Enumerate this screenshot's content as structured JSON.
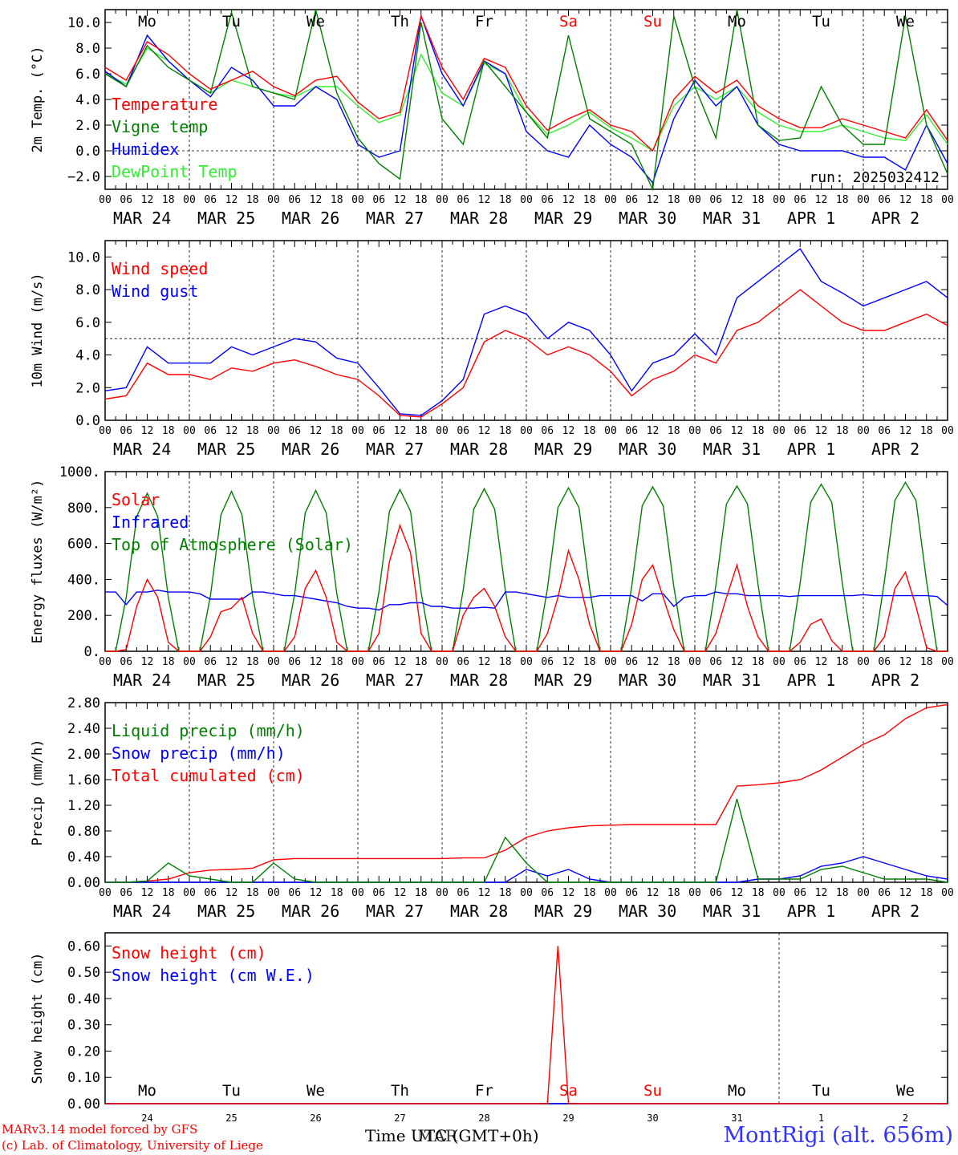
{
  "colors": {
    "red": "#ff0000",
    "green": "#008000",
    "blue": "#0000ff",
    "lightgreen": "#33ee33",
    "black": "#000000"
  },
  "day_letters": [
    "Mo",
    "Tu",
    "We",
    "Th",
    "Fr",
    "Sa",
    "Su",
    "Mo",
    "Tu",
    "We"
  ],
  "day_letter_colors": [
    "#000000",
    "#000000",
    "#000000",
    "#000000",
    "#000000",
    "#ff0000",
    "#ff0000",
    "#000000",
    "#000000",
    "#000000"
  ],
  "date_labels": [
    "MAR 24",
    "MAR 25",
    "MAR 26",
    "MAR 27",
    "MAR 28",
    "MAR 29",
    "MAR 30",
    "MAR 31",
    "APR  1",
    "APR  2"
  ],
  "hour_ticks": [
    "00",
    "06",
    "12",
    "18"
  ],
  "snow_day_numbers": [
    "24",
    "25",
    "26",
    "27",
    "28",
    "29",
    "30",
    "31",
    "1",
    "2"
  ],
  "footer": {
    "model_line": "MARv3.14 model forced by GFS",
    "credit_line": "(c) Lab. of Climatology, University of Liege",
    "time_label": "Time UTC (GMT+0h)",
    "time_overlap": "MAR",
    "station": "MontRigi (alt. 656m)"
  },
  "chart_data": [
    {
      "type": "line",
      "ylabel": "2m Temp. (°C)",
      "ylim": [
        -3,
        11
      ],
      "yticks": [
        10,
        8,
        6,
        4,
        2,
        0,
        -2
      ],
      "ytick_labels": [
        "10.0",
        "8.0",
        "6.0",
        "4.0",
        "2.0",
        "0.0",
        "−2.0"
      ],
      "reference_line": 0,
      "annotation": "run: 2025032412",
      "x_hours": [
        0,
        6,
        12,
        18,
        24,
        30,
        36,
        42,
        48,
        54,
        60,
        66,
        72,
        78,
        84,
        90,
        96,
        102,
        108,
        114,
        120,
        126,
        132,
        138,
        144,
        150,
        156,
        162,
        168,
        174,
        180,
        186,
        192,
        198,
        204,
        210,
        216,
        222,
        228,
        234,
        240
      ],
      "series": [
        {
          "name": "Temperature",
          "color": "#ff0000",
          "values": [
            6.5,
            5.5,
            8.5,
            7.5,
            6.0,
            4.8,
            5.5,
            6.2,
            5.0,
            4.3,
            5.5,
            5.8,
            3.8,
            2.5,
            3.0,
            10.5,
            6.5,
            4.0,
            7.2,
            6.5,
            3.5,
            1.6,
            2.5,
            3.2,
            2.0,
            1.5,
            0.0,
            4.0,
            5.8,
            4.5,
            5.5,
            3.5,
            2.5,
            1.8,
            1.8,
            2.5,
            2.0,
            1.5,
            1.0,
            3.2,
            0.8
          ]
        },
        {
          "name": "Vigne temp",
          "color": "#008000",
          "values": [
            6.0,
            5.0,
            8.2,
            6.5,
            5.5,
            4.5,
            10.8,
            5.0,
            4.5,
            4.0,
            11.0,
            4.5,
            1.0,
            -1.0,
            -2.2,
            10.0,
            2.5,
            0.5,
            7.0,
            5.0,
            3.0,
            1.0,
            9.0,
            2.5,
            1.5,
            0.5,
            -3.0,
            10.5,
            5.0,
            1.0,
            11.0,
            2.0,
            0.8,
            1.0,
            5.0,
            2.0,
            0.5,
            0.5,
            10.5,
            2.0,
            -1.8
          ]
        },
        {
          "name": "Humidex",
          "color": "#0000ff",
          "values": [
            6.2,
            5.0,
            9.0,
            7.0,
            5.5,
            4.2,
            6.5,
            5.5,
            3.5,
            3.5,
            5.0,
            4.0,
            0.5,
            -0.5,
            0.0,
            10.5,
            6.0,
            3.5,
            7.0,
            6.0,
            1.5,
            0.0,
            -0.5,
            2.0,
            0.5,
            -0.5,
            -2.5,
            2.5,
            5.5,
            3.5,
            5.0,
            2.0,
            0.5,
            0.0,
            0.0,
            0.0,
            -0.5,
            -0.5,
            -1.5,
            2.0,
            -1.0
          ]
        },
        {
          "name": "DewPoint Temp",
          "color": "#33ee33",
          "values": [
            6.0,
            5.2,
            8.0,
            7.0,
            5.5,
            4.5,
            5.5,
            5.0,
            4.5,
            4.2,
            5.0,
            5.0,
            3.5,
            2.2,
            2.8,
            7.5,
            4.5,
            3.5,
            6.8,
            6.0,
            3.0,
            1.3,
            2.0,
            3.0,
            1.8,
            1.0,
            0.0,
            3.5,
            5.0,
            4.0,
            5.0,
            3.0,
            2.0,
            1.5,
            1.5,
            2.0,
            1.5,
            1.0,
            0.8,
            2.8,
            0.5
          ]
        }
      ]
    },
    {
      "type": "line",
      "ylabel": "10m Wind (m/s)",
      "ylim": [
        0,
        11
      ],
      "yticks": [
        10,
        8,
        6,
        4,
        2,
        0
      ],
      "ytick_labels": [
        "10.0",
        "8.0",
        "6.0",
        "4.0",
        "2.0",
        "0.0"
      ],
      "reference_line": 5,
      "x_hours": [
        0,
        6,
        12,
        18,
        24,
        30,
        36,
        42,
        48,
        54,
        60,
        66,
        72,
        78,
        84,
        90,
        96,
        102,
        108,
        114,
        120,
        126,
        132,
        138,
        144,
        150,
        156,
        162,
        168,
        174,
        180,
        186,
        192,
        198,
        204,
        210,
        216,
        222,
        228,
        234,
        240
      ],
      "series": [
        {
          "name": "Wind speed",
          "color": "#ff0000",
          "values": [
            1.3,
            1.5,
            3.5,
            2.8,
            2.8,
            2.5,
            3.2,
            3.0,
            3.5,
            3.7,
            3.3,
            2.8,
            2.5,
            1.5,
            0.3,
            0.2,
            1.0,
            2.0,
            4.8,
            5.5,
            5.0,
            4.0,
            4.5,
            4.0,
            3.0,
            1.5,
            2.5,
            3.0,
            4.0,
            3.5,
            5.5,
            6.0,
            7.0,
            8.0,
            7.0,
            6.0,
            5.5,
            5.5,
            6.0,
            6.5,
            5.8
          ]
        },
        {
          "name": "Wind gust",
          "color": "#0000ff",
          "values": [
            1.8,
            2.0,
            4.5,
            3.5,
            3.5,
            3.5,
            4.5,
            4.0,
            4.5,
            5.0,
            4.8,
            3.8,
            3.5,
            2.0,
            0.4,
            0.3,
            1.2,
            2.5,
            6.5,
            7.0,
            6.5,
            5.0,
            6.0,
            5.5,
            4.0,
            1.8,
            3.5,
            4.0,
            5.3,
            4.0,
            7.5,
            8.5,
            9.5,
            10.5,
            8.5,
            7.8,
            7.0,
            7.5,
            8.0,
            8.5,
            7.5
          ]
        }
      ]
    },
    {
      "type": "line",
      "ylabel": "Energy fluxes (W/m²)",
      "ylim": [
        0,
        1000
      ],
      "yticks": [
        1000,
        800,
        600,
        400,
        200,
        0
      ],
      "ytick_labels": [
        "1000.",
        "800.",
        "600.",
        "400.",
        "200.",
        "0."
      ],
      "x_hours": [
        0,
        3,
        6,
        9,
        12,
        15,
        18,
        21,
        24,
        27,
        30,
        33,
        36,
        39,
        42,
        45,
        48,
        51,
        54,
        57,
        60,
        63,
        66,
        69,
        72,
        75,
        78,
        81,
        84,
        87,
        90,
        93,
        96,
        99,
        102,
        105,
        108,
        111,
        114,
        117,
        120,
        123,
        126,
        129,
        132,
        135,
        138,
        141,
        144,
        147,
        150,
        153,
        156,
        159,
        162,
        165,
        168,
        171,
        174,
        177,
        180,
        183,
        186,
        189,
        192,
        195,
        198,
        201,
        204,
        207,
        210,
        213,
        216,
        219,
        222,
        225,
        228,
        231,
        234,
        237,
        240
      ],
      "series": [
        {
          "name": "Solar",
          "color": "#ff0000",
          "values": [
            0,
            0,
            10,
            250,
            400,
            300,
            50,
            0,
            0,
            0,
            80,
            220,
            240,
            300,
            100,
            0,
            0,
            0,
            80,
            350,
            450,
            300,
            50,
            0,
            0,
            0,
            100,
            500,
            700,
            550,
            100,
            0,
            0,
            0,
            200,
            300,
            350,
            250,
            80,
            0,
            0,
            0,
            100,
            300,
            560,
            400,
            150,
            0,
            0,
            0,
            150,
            400,
            480,
            300,
            120,
            0,
            0,
            0,
            100,
            300,
            480,
            250,
            80,
            0,
            0,
            0,
            50,
            150,
            180,
            60,
            0,
            0,
            0,
            0,
            80,
            350,
            440,
            250,
            20,
            0,
            0
          ]
        },
        {
          "name": "Infrared",
          "color": "#0000ff",
          "values": [
            330,
            330,
            260,
            330,
            330,
            340,
            330,
            330,
            330,
            320,
            290,
            290,
            290,
            290,
            330,
            330,
            320,
            310,
            310,
            300,
            290,
            280,
            270,
            250,
            240,
            240,
            230,
            260,
            260,
            270,
            270,
            250,
            250,
            240,
            240,
            240,
            245,
            240,
            330,
            330,
            320,
            310,
            300,
            310,
            300,
            300,
            300,
            310,
            310,
            310,
            310,
            280,
            320,
            320,
            250,
            300,
            310,
            310,
            330,
            320,
            320,
            310,
            310,
            310,
            310,
            305,
            310,
            310,
            310,
            310,
            310,
            310,
            315,
            310,
            310,
            310,
            310,
            310,
            310,
            305,
            255
          ]
        },
        {
          "name": "Top of Atmosphere (Solar)",
          "color": "#008000",
          "values": [
            0,
            0,
            300,
            750,
            880,
            750,
            300,
            0,
            0,
            0,
            310,
            760,
            890,
            760,
            310,
            0,
            0,
            0,
            320,
            770,
            895,
            770,
            320,
            0,
            0,
            0,
            330,
            780,
            900,
            780,
            330,
            0,
            0,
            0,
            340,
            790,
            905,
            790,
            340,
            0,
            0,
            0,
            350,
            800,
            910,
            800,
            350,
            0,
            0,
            0,
            360,
            810,
            915,
            810,
            360,
            0,
            0,
            0,
            370,
            820,
            920,
            820,
            370,
            0,
            0,
            0,
            380,
            830,
            930,
            830,
            380,
            0,
            0,
            0,
            390,
            840,
            940,
            840,
            390,
            0,
            0
          ]
        }
      ]
    },
    {
      "type": "line",
      "ylabel": "Precip (mm/h)",
      "ylim": [
        0,
        2.8
      ],
      "yticks": [
        2.8,
        2.4,
        2.0,
        1.6,
        1.2,
        0.8,
        0.4,
        0.0
      ],
      "ytick_labels": [
        "2.80",
        "2.40",
        "2.00",
        "1.60",
        "1.20",
        "0.80",
        "0.40",
        "0.00"
      ],
      "x_hours": [
        0,
        6,
        12,
        18,
        24,
        30,
        36,
        42,
        48,
        54,
        60,
        66,
        72,
        78,
        84,
        90,
        96,
        102,
        108,
        114,
        120,
        126,
        132,
        138,
        144,
        150,
        156,
        162,
        168,
        174,
        180,
        186,
        192,
        198,
        204,
        210,
        216,
        222,
        228,
        234,
        240
      ],
      "series": [
        {
          "name": "Liquid precip (mm/h)",
          "color": "#008000",
          "values": [
            0,
            0,
            0.02,
            0.3,
            0.1,
            0.05,
            0,
            0,
            0.3,
            0.05,
            0,
            0,
            0,
            0,
            0,
            0,
            0,
            0,
            0,
            0.7,
            0.3,
            0,
            0,
            0,
            0,
            0,
            0,
            0,
            0,
            0,
            1.3,
            0.05,
            0.05,
            0.05,
            0.2,
            0.25,
            0.15,
            0.05,
            0.05,
            0.05,
            0
          ]
        },
        {
          "name": "Snow precip (mm/h)",
          "color": "#0000ff",
          "values": [
            0,
            0,
            0,
            0,
            0,
            0,
            0,
            0,
            0,
            0,
            0,
            0,
            0,
            0,
            0,
            0,
            0,
            0,
            0,
            0,
            0.2,
            0.1,
            0.2,
            0.05,
            0,
            0,
            0,
            0,
            0,
            0,
            0,
            0.05,
            0.05,
            0.1,
            0.25,
            0.3,
            0.4,
            0.3,
            0.2,
            0.1,
            0.05
          ]
        },
        {
          "name": "Total cumulated (cm)",
          "color": "#ff0000",
          "values": [
            0,
            0,
            0.02,
            0.05,
            0.15,
            0.19,
            0.2,
            0.22,
            0.35,
            0.37,
            0.37,
            0.37,
            0.37,
            0.37,
            0.37,
            0.37,
            0.37,
            0.38,
            0.38,
            0.5,
            0.7,
            0.8,
            0.85,
            0.88,
            0.89,
            0.9,
            0.9,
            0.9,
            0.9,
            0.9,
            1.5,
            1.52,
            1.55,
            1.6,
            1.75,
            1.95,
            2.15,
            2.3,
            2.55,
            2.72,
            2.77
          ]
        }
      ]
    },
    {
      "type": "line",
      "ylabel": "Snow height (cm)",
      "ylim": [
        0,
        0.65
      ],
      "yticks": [
        0.6,
        0.5,
        0.4,
        0.3,
        0.2,
        0.1,
        0.0
      ],
      "ytick_labels": [
        "0.60",
        "0.50",
        "0.40",
        "0.30",
        "0.20",
        "0.10",
        "0.00"
      ],
      "x_hours": [
        0,
        126,
        129,
        132,
        240
      ],
      "series": [
        {
          "name": "Snow height (cm)",
          "color": "#ff0000",
          "values": [
            0,
            0,
            0.6,
            0,
            0
          ]
        },
        {
          "name": "Snow height (cm W.E.)",
          "color": "#0000ff",
          "values": [
            0,
            0,
            0,
            0,
            0
          ]
        }
      ]
    }
  ]
}
